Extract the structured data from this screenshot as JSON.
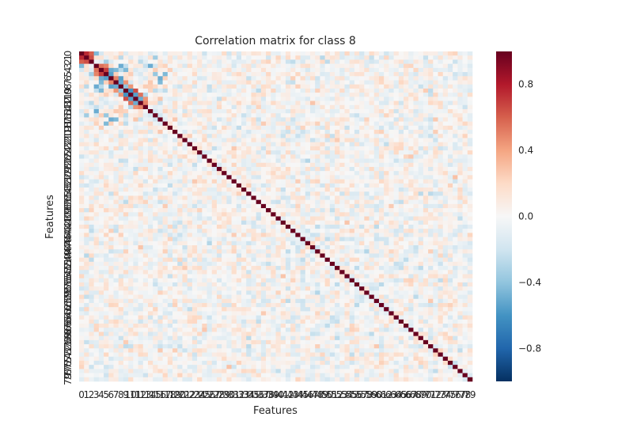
{
  "chart_data": {
    "type": "heatmap",
    "title": "Correlation matrix for class 8",
    "xlabel": "Features",
    "ylabel": "Features",
    "n_features": 80,
    "x_tick_labels": [
      "0",
      "1",
      "2",
      "3",
      "4",
      "5",
      "6",
      "7",
      "8",
      "9",
      "10",
      "11",
      "12",
      "13",
      "14",
      "15",
      "16",
      "17",
      "18",
      "19",
      "20",
      "21",
      "22",
      "23",
      "24",
      "25",
      "26",
      "27",
      "28",
      "29",
      "30",
      "31",
      "32",
      "33",
      "34",
      "35",
      "36",
      "37",
      "38",
      "39",
      "40",
      "41",
      "42",
      "43",
      "44",
      "45",
      "46",
      "47",
      "48",
      "49",
      "50",
      "51",
      "52",
      "53",
      "54",
      "55",
      "56",
      "57",
      "58",
      "59",
      "60",
      "61",
      "62",
      "63",
      "64",
      "65",
      "66",
      "67",
      "68",
      "69",
      "70",
      "71",
      "72",
      "73",
      "74",
      "75",
      "76",
      "77",
      "78",
      "79"
    ],
    "y_tick_labels": [
      "0",
      "1",
      "2",
      "3",
      "4",
      "5",
      "6",
      "7",
      "8",
      "9",
      "10",
      "11",
      "12",
      "13",
      "14",
      "15",
      "16",
      "17",
      "18",
      "19",
      "20",
      "21",
      "22",
      "23",
      "24",
      "25",
      "26",
      "27",
      "28",
      "29",
      "30",
      "31",
      "32",
      "33",
      "34",
      "35",
      "36",
      "37",
      "38",
      "39",
      "40",
      "41",
      "42",
      "43",
      "44",
      "45",
      "46",
      "47",
      "48",
      "49",
      "50",
      "51",
      "52",
      "53",
      "54",
      "55",
      "56",
      "57",
      "58",
      "59",
      "60",
      "61",
      "62",
      "63",
      "64",
      "65",
      "66",
      "67",
      "68",
      "69",
      "70",
      "71",
      "72",
      "73",
      "74",
      "75",
      "76",
      "77",
      "78",
      "79"
    ],
    "diagonal_value": 1.0,
    "value_range": [
      -1,
      1
    ],
    "colorbar": {
      "colormap": "RdBu_r",
      "ticks": [
        0.8,
        0.4,
        0.0,
        -0.4,
        -0.8
      ],
      "tick_labels": [
        "0.8",
        "0.4",
        "0.0",
        "−0.4",
        "−0.8"
      ]
    },
    "highlighted_cells": [
      {
        "row": 1,
        "col": 0,
        "value": 0.75
      },
      {
        "row": 2,
        "col": 0,
        "value": 0.6
      },
      {
        "row": 2,
        "col": 1,
        "value": 0.65
      },
      {
        "row": 3,
        "col": 0,
        "value": -0.45
      },
      {
        "row": 4,
        "col": 3,
        "value": 0.55
      },
      {
        "row": 5,
        "col": 3,
        "value": 0.5
      },
      {
        "row": 5,
        "col": 4,
        "value": 0.7
      },
      {
        "row": 6,
        "col": 4,
        "value": -0.5
      },
      {
        "row": 6,
        "col": 5,
        "value": -0.55
      },
      {
        "row": 7,
        "col": 6,
        "value": 0.5
      },
      {
        "row": 8,
        "col": 6,
        "value": -0.55
      },
      {
        "row": 8,
        "col": 7,
        "value": -0.5
      },
      {
        "row": 9,
        "col": 7,
        "value": 0.45
      },
      {
        "row": 10,
        "col": 8,
        "value": 0.45
      },
      {
        "row": 10,
        "col": 9,
        "value": -0.6
      },
      {
        "row": 11,
        "col": 9,
        "value": 0.65
      },
      {
        "row": 11,
        "col": 10,
        "value": -0.55
      },
      {
        "row": 12,
        "col": 10,
        "value": 0.55
      },
      {
        "row": 12,
        "col": 11,
        "value": -0.5
      },
      {
        "row": 13,
        "col": 11,
        "value": 0.45
      },
      {
        "row": 13,
        "col": 12,
        "value": 0.5
      },
      {
        "row": 14,
        "col": 3,
        "value": -0.5
      },
      {
        "row": 16,
        "col": 6,
        "value": -0.5
      },
      {
        "row": 16,
        "col": 7,
        "value": -0.45
      },
      {
        "row": 17,
        "col": 5,
        "value": -0.45
      },
      {
        "row": 8,
        "col": 3,
        "value": -0.5
      },
      {
        "row": 9,
        "col": 4,
        "value": -0.45
      },
      {
        "row": 7,
        "col": 4,
        "value": -0.45
      },
      {
        "row": 9,
        "col": 8,
        "value": -0.4
      }
    ]
  }
}
